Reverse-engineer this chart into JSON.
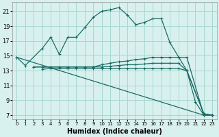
{
  "xlabel": "Humidex (Indice chaleur)",
  "bg_color": "#d8f0ee",
  "grid_color": "#a8d8d0",
  "line_color": "#1a6b65",
  "xlim": [
    -0.5,
    23.5
  ],
  "ylim": [
    6.5,
    22.2
  ],
  "xticks": [
    0,
    1,
    2,
    3,
    4,
    5,
    6,
    7,
    8,
    9,
    10,
    11,
    12,
    13,
    14,
    15,
    16,
    17,
    18,
    19,
    20,
    21,
    22,
    23
  ],
  "yticks": [
    7,
    9,
    11,
    13,
    15,
    17,
    19,
    21
  ],
  "lines": [
    {
      "x": [
        0,
        1,
        3,
        4,
        5,
        6,
        7,
        8,
        9,
        10,
        11,
        12,
        13,
        14,
        15,
        16,
        17,
        18,
        20,
        21,
        22,
        23
      ],
      "y": [
        14.8,
        13.7,
        16.0,
        17.5,
        15.2,
        17.5,
        17.5,
        18.8,
        20.2,
        21.0,
        21.2,
        21.5,
        20.5,
        19.2,
        19.5,
        20.0,
        20.0,
        16.8,
        13.0,
        8.8,
        7.0,
        7.0
      ]
    },
    {
      "x": [
        2,
        3,
        4,
        5,
        6,
        7,
        8,
        9,
        10,
        11,
        12,
        13,
        14,
        15,
        16,
        17,
        18,
        19,
        20,
        22,
        23
      ],
      "y": [
        13.5,
        13.5,
        13.5,
        13.5,
        13.5,
        13.5,
        13.5,
        13.5,
        13.8,
        14.0,
        14.2,
        14.3,
        14.5,
        14.6,
        14.8,
        14.8,
        14.8,
        14.8,
        14.8,
        7.0,
        7.0
      ]
    },
    {
      "x": [
        2,
        3,
        4,
        5,
        6,
        7,
        8,
        9,
        10,
        11,
        12,
        13,
        14,
        15,
        16,
        17,
        18,
        19,
        20,
        22,
        23
      ],
      "y": [
        13.5,
        13.5,
        13.5,
        13.5,
        13.5,
        13.5,
        13.5,
        13.5,
        13.5,
        13.6,
        13.7,
        13.8,
        13.8,
        13.9,
        14.0,
        14.0,
        14.0,
        14.0,
        13.0,
        7.2,
        7.0
      ]
    },
    {
      "x": [
        3,
        4,
        5,
        6,
        7,
        8,
        9,
        10,
        11,
        12,
        13,
        14,
        15,
        16,
        17,
        18,
        19,
        20,
        22,
        23
      ],
      "y": [
        13.2,
        13.3,
        13.3,
        13.3,
        13.3,
        13.3,
        13.3,
        13.3,
        13.3,
        13.3,
        13.3,
        13.3,
        13.3,
        13.3,
        13.3,
        13.3,
        13.3,
        13.0,
        7.2,
        7.0
      ]
    },
    {
      "x": [
        0,
        22,
        23
      ],
      "y": [
        14.8,
        7.0,
        7.0
      ]
    }
  ]
}
